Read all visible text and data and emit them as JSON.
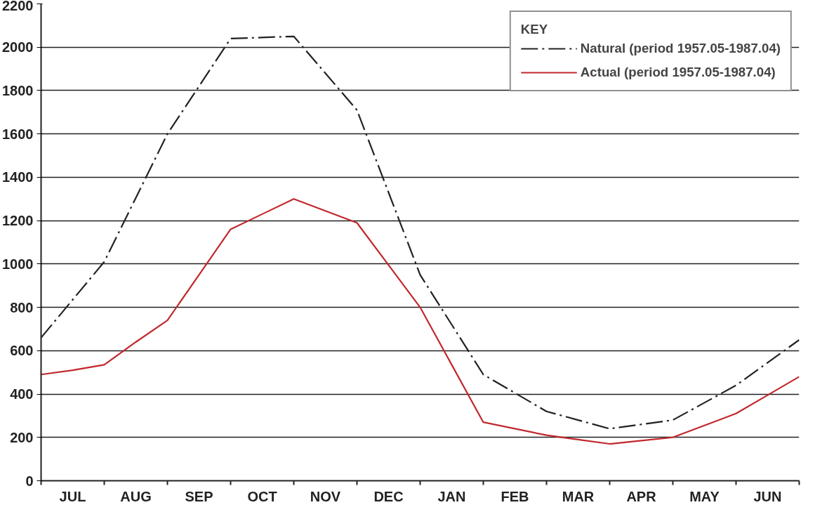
{
  "chart_data": {
    "type": "line",
    "legend_title": "KEY",
    "legend": "top right",
    "grid": "y",
    "categories": [
      null,
      "JUL",
      null,
      "AUG",
      null,
      "SEP",
      null,
      "OCT",
      null,
      "NOV",
      null,
      "DEC",
      null,
      "JAN",
      null,
      "FEB",
      null,
      "MAR",
      null,
      "APR",
      null,
      "MAY",
      null,
      "JUN",
      null
    ],
    "ylim": [
      0,
      2200
    ],
    "yticks": [
      0,
      200,
      400,
      600,
      800,
      1000,
      1200,
      1400,
      1600,
      1800,
      2000,
      2200
    ],
    "series": [
      {
        "name": "Natural (period 1957.05-1987.04)",
        "color": "#222222",
        "line_style": "dashdot",
        "values": [
          660,
          835,
          1010,
          1305,
          1600,
          1820,
          2040,
          2045,
          2050,
          1880,
          1710,
          1330,
          950,
          720,
          490,
          405,
          320,
          280,
          240,
          260,
          280,
          360,
          440,
          545,
          650
        ]
      },
      {
        "name": "Actual (period 1957.05-1987.04)",
        "color": "#c0282d",
        "line_style": "solid",
        "values": [
          490,
          510,
          535,
          640,
          740,
          950,
          1160,
          1230,
          1300,
          1245,
          1190,
          995,
          800,
          535,
          270,
          240,
          210,
          190,
          170,
          185,
          200,
          255,
          310,
          395,
          480
        ]
      }
    ]
  }
}
